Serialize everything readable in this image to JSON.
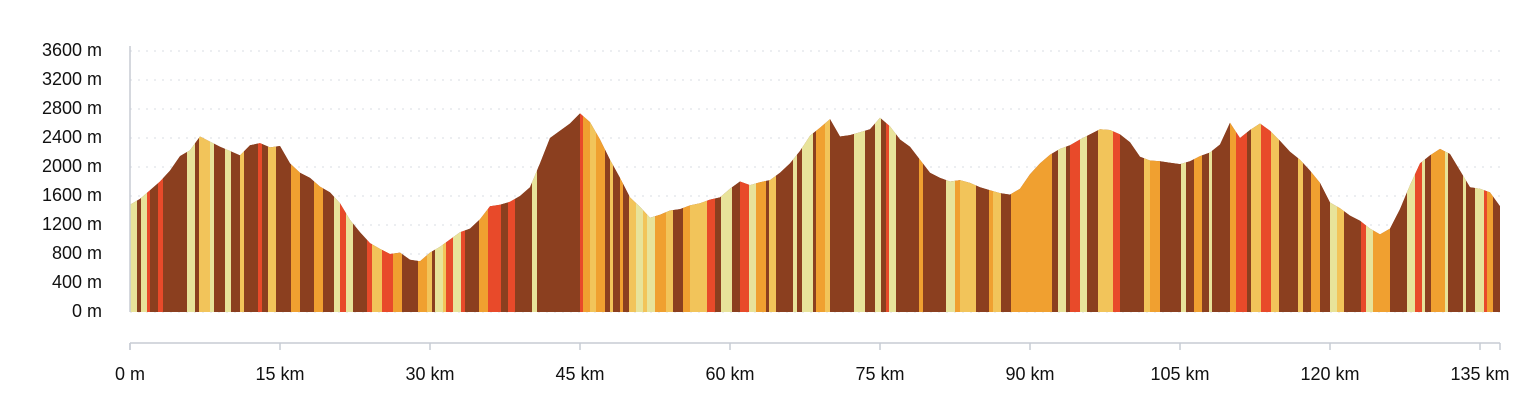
{
  "chart_data": {
    "type": "area",
    "title": "",
    "xlabel": "",
    "ylabel": "",
    "xlim": [
      0,
      137
    ],
    "ylim": [
      0,
      3600
    ],
    "x_ticks": [
      "0 m",
      "15 km",
      "30 km",
      "45 km",
      "60 km",
      "75 km",
      "90 km",
      "105 km",
      "120 km",
      "135 km"
    ],
    "y_ticks": [
      "0 m",
      "400 m",
      "800 m",
      "1200 m",
      "1600 m",
      "2000 m",
      "2400 m",
      "2800 m",
      "3200 m",
      "3600 m"
    ],
    "x": [
      0,
      1,
      2,
      3,
      4,
      5,
      6,
      7,
      8,
      9,
      10,
      11,
      12,
      13,
      14,
      15,
      16,
      17,
      18,
      19,
      20,
      21,
      22,
      23,
      24,
      25,
      26,
      27,
      28,
      29,
      30,
      31,
      32,
      33,
      34,
      35,
      36,
      37,
      38,
      39,
      40,
      41,
      42,
      43,
      44,
      45,
      46,
      47,
      48,
      49,
      50,
      51,
      52,
      53,
      54,
      55,
      56,
      57,
      58,
      59,
      60,
      61,
      62,
      63,
      64,
      65,
      66,
      67,
      68,
      69,
      70,
      71,
      72,
      73,
      74,
      75,
      76,
      77,
      78,
      79,
      80,
      81,
      82,
      83,
      84,
      85,
      86,
      87,
      88,
      89,
      90,
      91,
      92,
      93,
      94,
      95,
      96,
      97,
      98,
      99,
      100,
      101,
      102,
      103,
      104,
      105,
      106,
      107,
      108,
      109,
      110,
      111,
      112,
      113,
      114,
      115,
      116,
      117,
      118,
      119,
      120,
      121,
      122,
      123,
      124,
      125,
      126,
      127,
      128,
      129,
      130,
      131,
      132,
      133,
      134,
      135,
      136,
      137
    ],
    "series": [
      {
        "values": [
          1480,
          1560,
          1680,
          1800,
          1950,
          2150,
          2230,
          2420,
          2350,
          2280,
          2220,
          2160,
          2300,
          2330,
          2270,
          2290,
          2050,
          1920,
          1850,
          1730,
          1650,
          1500,
          1270,
          1100,
          950,
          870,
          800,
          820,
          720,
          700,
          820,
          900,
          1000,
          1100,
          1150,
          1280,
          1460,
          1480,
          1520,
          1600,
          1720,
          2050,
          2400,
          2500,
          2600,
          2740,
          2620,
          2380,
          2100,
          1850,
          1580,
          1450,
          1300,
          1340,
          1400,
          1420,
          1470,
          1500,
          1550,
          1580,
          1700,
          1800,
          1750,
          1790,
          1820,
          1920,
          2050,
          2220,
          2430,
          2540,
          2660,
          2420,
          2440,
          2480,
          2520,
          2680,
          2560,
          2380,
          2280,
          2100,
          1920,
          1850,
          1800,
          1820,
          1780,
          1720,
          1680,
          1640,
          1620,
          1700,
          1900,
          2050,
          2170,
          2250,
          2300,
          2380,
          2450,
          2520,
          2510,
          2450,
          2340,
          2140,
          2090,
          2080,
          2060,
          2040,
          2080,
          2150,
          2200,
          2310,
          2610,
          2400,
          2510,
          2600,
          2500,
          2360,
          2210,
          2100,
          1950,
          1780,
          1510,
          1430,
          1330,
          1260,
          1150,
          1070,
          1150,
          1420,
          1750,
          2050,
          2160,
          2250,
          2180,
          1950,
          1720,
          1700,
          1650,
          1460
        ]
      }
    ],
    "stripe_colors": [
      "#8b3f1f",
      "#e8e39a",
      "#f0a030",
      "#e84a2a",
      "#f2c45a"
    ],
    "grid": true
  }
}
